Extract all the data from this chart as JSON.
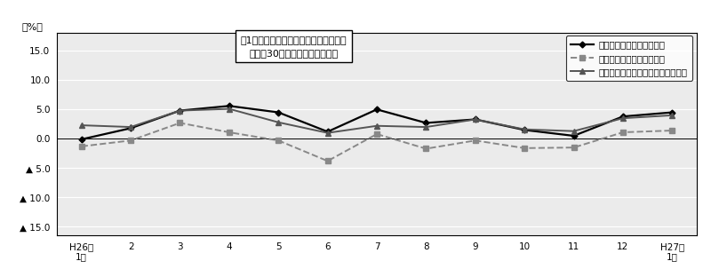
{
  "x_labels": [
    "H26年\n1月",
    "2",
    "3",
    "4",
    "5",
    "6",
    "7",
    "8",
    "9",
    "10",
    "11",
    "12",
    "H27年\n1月"
  ],
  "nominal_wage": [
    -0.1,
    1.8,
    4.8,
    5.6,
    4.5,
    1.2,
    5.0,
    2.7,
    3.3,
    1.5,
    0.5,
    3.8,
    4.5
  ],
  "real_wage": [
    -1.3,
    -0.3,
    2.7,
    1.1,
    -0.3,
    -3.8,
    0.8,
    -1.7,
    -0.3,
    -1.6,
    -1.5,
    1.1,
    1.4
  ],
  "nominal_fixed_wage": [
    2.3,
    2.0,
    4.8,
    5.1,
    2.8,
    1.0,
    2.2,
    2.0,
    3.3,
    1.6,
    1.3,
    3.5,
    4.0
  ],
  "title_box_line1": "図1　賃金指数の推移（対前年同月比）",
  "title_box_line2": "－規模30人以上－　調査産業計",
  "ylabel": "（%）",
  "line1_label": "名目賃金（現金給与総額）",
  "line2_label": "実質賃金（現金給与総額）",
  "line3_label": "名目賃金（きまって支給する給与）",
  "yticks": [
    15.0,
    10.0,
    5.0,
    0.0,
    -5.0,
    -10.0,
    -15.0
  ],
  "ytick_labels": [
    "15.0",
    "10.0",
    "5.0",
    "0.0",
    "▲ 5.0",
    "▲ 10.0",
    "▲ 15.0"
  ],
  "ylim": [
    -16.5,
    18.0
  ],
  "color_nominal": "#000000",
  "color_real": "#888888",
  "color_fixed": "#555555",
  "background_color": "#ebebeb"
}
